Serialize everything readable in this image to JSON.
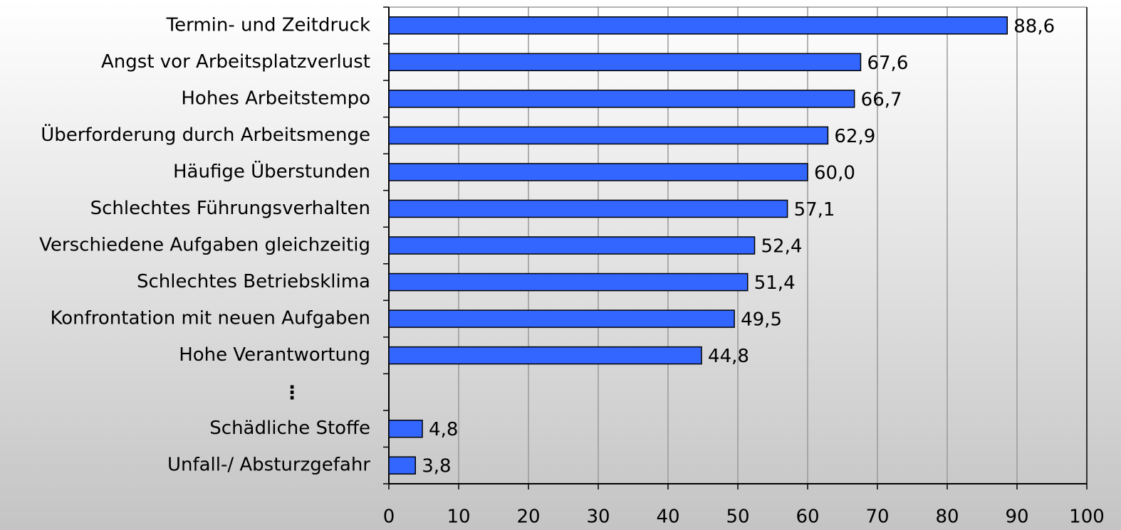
{
  "chart_data": {
    "type": "bar",
    "orientation": "horizontal",
    "categories": [
      "Termin- und Zeitdruck",
      "Angst vor Arbeitsplatzverlust",
      "Hohes Arbeitstempo",
      "Überforderung durch Arbeitsmenge",
      "Häufige Überstunden",
      "Schlechtes Führungsverhalten",
      "Verschiedene Aufgaben gleichzeitig",
      "Schlechtes Betriebsklima",
      "Konfrontation mit neuen Aufgaben",
      "Hohe Verantwortung",
      "⋮",
      "Schädliche Stoffe",
      "Unfall-/ Absturzgefahr"
    ],
    "values": [
      88.6,
      67.6,
      66.7,
      62.9,
      60.0,
      57.1,
      52.4,
      51.4,
      49.5,
      44.8,
      null,
      4.8,
      3.8
    ],
    "value_labels": [
      "88,6",
      "67,6",
      "66,7",
      "62,9",
      "60,0",
      "57,1",
      "52,4",
      "51,4",
      "49,5",
      "44,8",
      null,
      "4,8",
      "3,8"
    ],
    "color": "#3366ff",
    "xlim": [
      0,
      100
    ],
    "xticks": [
      0,
      10,
      20,
      30,
      40,
      50,
      60,
      70,
      80,
      90,
      100
    ],
    "grid": true
  }
}
